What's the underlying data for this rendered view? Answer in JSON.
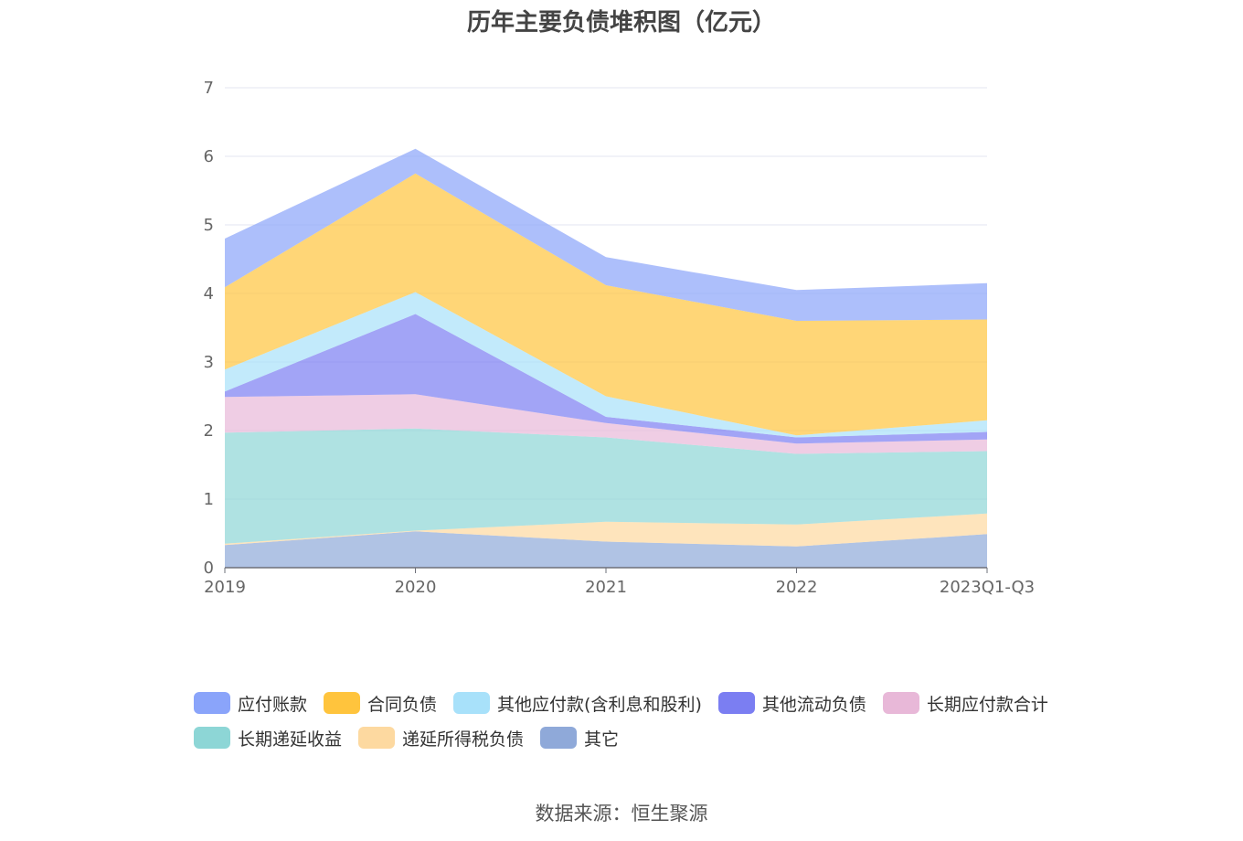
{
  "title": "历年主要负债堆积图（亿元）",
  "source": "数据来源：恒生聚源",
  "chart_data": {
    "type": "area",
    "stacked": true,
    "title": "历年主要负债堆积图（亿元）",
    "xlabel": "",
    "ylabel": "",
    "ylim": [
      0,
      7
    ],
    "yticks": [
      "0",
      "1",
      "2",
      "3",
      "4",
      "5",
      "6",
      "7"
    ],
    "grid": true,
    "legend_position": "bottom",
    "categories": [
      "2019",
      "2020",
      "2021",
      "2022",
      "2023Q1-Q3"
    ],
    "series": [
      {
        "name": "其它",
        "color": "#8fa9d9",
        "values": [
          0.33,
          0.53,
          0.38,
          0.31,
          0.49
        ]
      },
      {
        "name": "递延所得税负债",
        "color": "#fdd9a0",
        "values": [
          0.02,
          0.01,
          0.29,
          0.32,
          0.3
        ]
      },
      {
        "name": "长期递延收益",
        "color": "#8dd6d6",
        "values": [
          1.62,
          1.49,
          1.23,
          1.03,
          0.91
        ]
      },
      {
        "name": "长期应付款合计",
        "color": "#e8b8d8",
        "values": [
          0.52,
          0.5,
          0.21,
          0.15,
          0.17
        ]
      },
      {
        "name": "其他流动负债",
        "color": "#7b7ef2",
        "values": [
          0.08,
          1.17,
          0.09,
          0.09,
          0.11
        ]
      },
      {
        "name": "其他应付款(含利息和股利)",
        "color": "#a8e1fa",
        "values": [
          0.32,
          0.32,
          0.3,
          0.03,
          0.17
        ]
      },
      {
        "name": "合同负债",
        "color": "#ffc43d",
        "values": [
          1.2,
          1.73,
          1.62,
          1.67,
          1.47
        ]
      },
      {
        "name": "应付账款",
        "color": "#8aa4fa",
        "values": [
          0.71,
          0.36,
          0.41,
          0.45,
          0.53
        ]
      }
    ]
  },
  "legend": [
    {
      "name": "应付账款",
      "color": "#8aa4fa"
    },
    {
      "name": "合同负债",
      "color": "#ffc43d"
    },
    {
      "name": "其他应付款(含利息和股利)",
      "color": "#a8e1fa"
    },
    {
      "name": "其他流动负债",
      "color": "#7b7ef2"
    },
    {
      "name": "长期应付款合计",
      "color": "#e8b8d8"
    },
    {
      "name": "长期递延收益",
      "color": "#8dd6d6"
    },
    {
      "name": "递延所得税负债",
      "color": "#fdd9a0"
    },
    {
      "name": "其它",
      "color": "#8fa9d9"
    }
  ]
}
